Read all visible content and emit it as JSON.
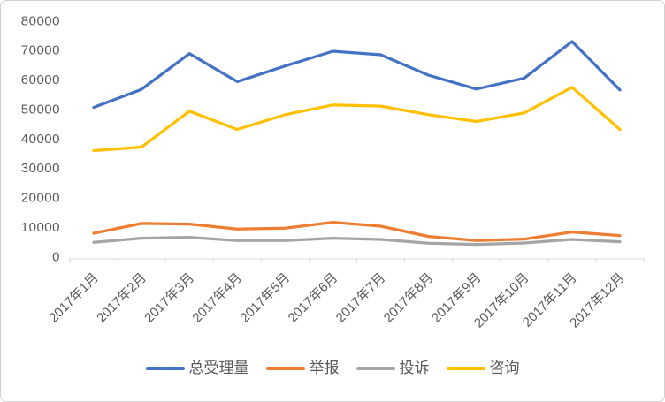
{
  "chart_data": {
    "type": "line",
    "title": "",
    "x_categories": [
      "2017年1月",
      "2017年2月",
      "2017年3月",
      "2017年4月",
      "2017年5月",
      "2017年6月",
      "2017年7月",
      "2017年8月",
      "2017年9月",
      "2017年10月",
      "2017年11月",
      "2017年12月"
    ],
    "series": [
      {
        "key": "total",
        "name": "总受理量",
        "color": "#4472C4",
        "values": [
          51400,
          57500,
          69600,
          60100,
          65400,
          70400,
          69200,
          62300,
          57600,
          61300,
          73700,
          57300
        ]
      },
      {
        "key": "reports",
        "name": "举报",
        "color": "#ED7D31",
        "values": [
          8700,
          12000,
          11800,
          10100,
          10400,
          12400,
          11100,
          7600,
          6200,
          6700,
          9100,
          7900
        ]
      },
      {
        "key": "complaints",
        "name": "投诉",
        "color": "#A5A5A5",
        "values": [
          5600,
          7000,
          7300,
          6200,
          6200,
          7000,
          6600,
          5300,
          4900,
          5400,
          6600,
          5800
        ]
      },
      {
        "key": "consultations",
        "name": "咨询",
        "color": "#FFC000",
        "values": [
          36700,
          37900,
          50100,
          43900,
          48900,
          52200,
          51800,
          48900,
          46600,
          49500,
          58200,
          43900
        ]
      }
    ],
    "y_axis": {
      "min": 0,
      "max": 80000,
      "step": 10000,
      "tick_labels": [
        "0",
        "10000",
        "20000",
        "30000",
        "40000",
        "50000",
        "60000",
        "70000",
        "80000"
      ]
    },
    "legend": {
      "position": "bottom",
      "entries": [
        "总受理量",
        "举报",
        "投诉",
        "咨询"
      ]
    },
    "grid": false,
    "axis_color": "#D9D9D9",
    "label_color": "#595959"
  }
}
